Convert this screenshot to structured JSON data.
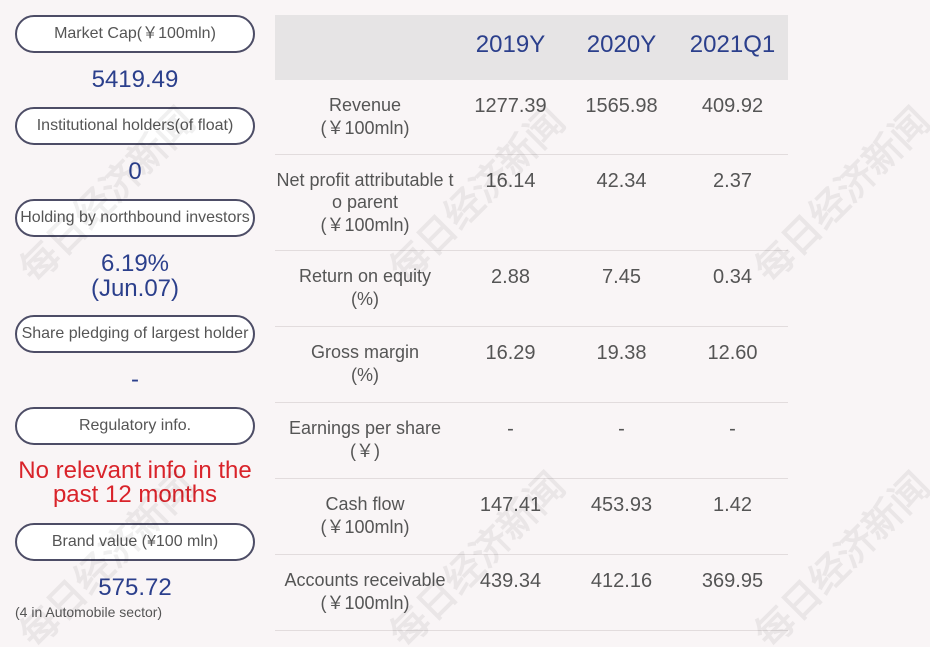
{
  "watermark": "每日经济新闻",
  "summary": [
    {
      "label": "Market Cap(￥100mln)",
      "value": "5419.49"
    },
    {
      "label": "Institutional holders(of float)",
      "value": "0"
    },
    {
      "label": "Holding by northbound investors",
      "value": "6.19%",
      "date": "(Jun.07)"
    },
    {
      "label": "Share pledging of largest holder",
      "value": "-"
    },
    {
      "label": "Regulatory info.",
      "alert": "No relevant info in the past 12 months"
    },
    {
      "label": "Brand value (¥100 mln)",
      "value": "575.72",
      "note": "(4 in Automobile sector)"
    }
  ],
  "table": {
    "headers": [
      "2019Y",
      "2020Y",
      "2021Q1"
    ],
    "rows": [
      {
        "label": "Revenue",
        "unit": "(￥100mln)",
        "values": [
          "1277.39",
          "1565.98",
          "409.92"
        ]
      },
      {
        "label": "Net profit attributable to parent",
        "unit": "(￥100mln)",
        "values": [
          "16.14",
          "42.34",
          "2.37"
        ]
      },
      {
        "label": "Return on equity",
        "unit": "(%)",
        "values": [
          "2.88",
          "7.45",
          "0.34"
        ]
      },
      {
        "label": "Gross margin",
        "unit": "(%)",
        "values": [
          "16.29",
          "19.38",
          "12.60"
        ]
      },
      {
        "label": "Earnings per share",
        "unit": "(￥)",
        "values": [
          "-",
          "-",
          "-"
        ]
      },
      {
        "label": "Cash flow",
        "unit": "(￥100mln)",
        "values": [
          "147.41",
          "453.93",
          "1.42"
        ]
      },
      {
        "label": "Accounts receivable",
        "unit": "(￥100mln)",
        "values": [
          "439.34",
          "412.16",
          "369.95"
        ]
      }
    ]
  }
}
